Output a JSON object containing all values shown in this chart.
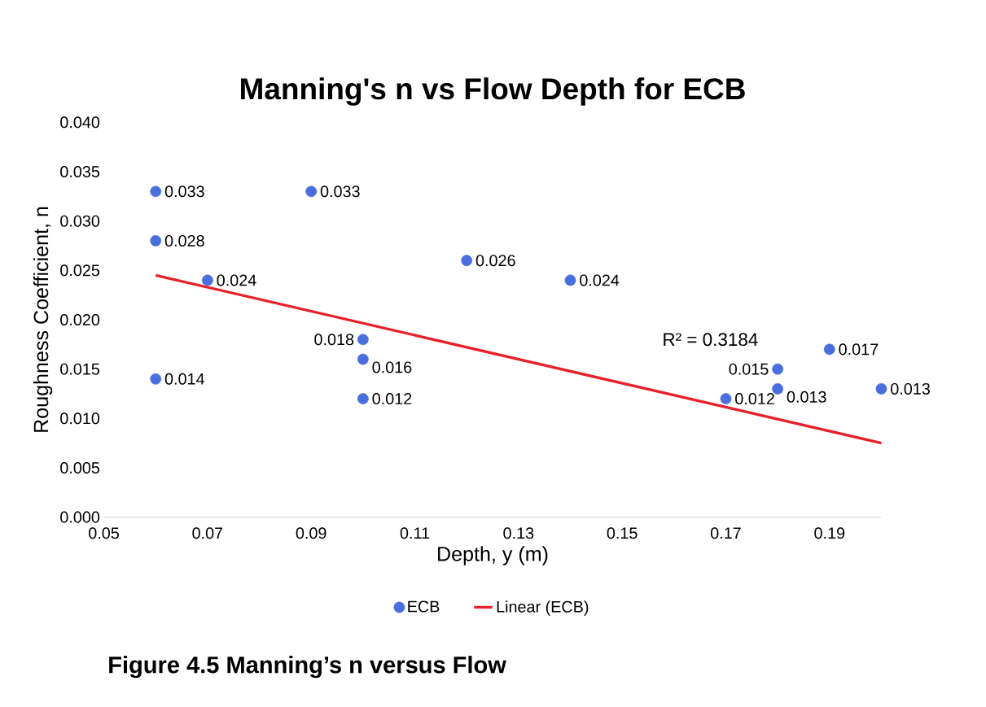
{
  "chart_data": {
    "type": "scatter",
    "title": "Manning's n vs Flow Depth for ECB",
    "xlabel": "Depth, y (m)",
    "ylabel": "Roughness Coefficient, n",
    "xlim": [
      0.05,
      0.2
    ],
    "xticks": [
      0.05,
      0.07,
      0.09,
      0.11,
      0.13,
      0.15,
      0.17,
      0.19
    ],
    "ylim": [
      0,
      0.04
    ],
    "yticks": [
      {
        "value": 0,
        "label": "0.000"
      },
      {
        "value": 0.005,
        "label": "0.005"
      },
      {
        "value": 0.01,
        "label": "0.010"
      },
      {
        "value": 0.015,
        "label": "0.015"
      },
      {
        "value": 0.02,
        "label": "0.020"
      },
      {
        "value": 0.025,
        "label": "0.025"
      },
      {
        "value": 0.03,
        "label": "0.030"
      },
      {
        "value": 0.035,
        "label": "0.035"
      },
      {
        "value": 0.04,
        "label": "0.040"
      }
    ],
    "grid": false,
    "legend": "bottom",
    "series": [
      {
        "name": "ECB",
        "color": "#4a6fdc",
        "marker": "circle",
        "x": [
          0.06,
          0.09,
          0.06,
          0.07,
          0.12,
          0.14,
          0.1,
          0.1,
          0.06,
          0.1,
          0.18,
          0.19,
          0.18,
          0.17,
          0.2
        ],
        "values": [
          0.033,
          0.033,
          0.028,
          0.024,
          0.026,
          0.024,
          0.018,
          0.016,
          0.014,
          0.012,
          0.015,
          0.017,
          0.013,
          0.012,
          0.013
        ],
        "value_labels": [
          "0.033",
          "0.033",
          "0.028",
          "0.024",
          "0.026",
          "0.024",
          "0.018",
          "0.016",
          "0.014",
          "0.012",
          "0.015",
          "0.017",
          "0.013",
          "0.012",
          "0.013"
        ]
      },
      {
        "name": "Linear (ECB)",
        "type": "line",
        "color": "#e8202a",
        "line_style": "solid",
        "marker": "none",
        "x": [
          0.06,
          0.2
        ],
        "values": [
          0.0245,
          0.0075
        ]
      }
    ],
    "annotations": [
      "R² = 0.3184",
      "Figure 4.5 Manning’s n versus Flow"
    ]
  }
}
